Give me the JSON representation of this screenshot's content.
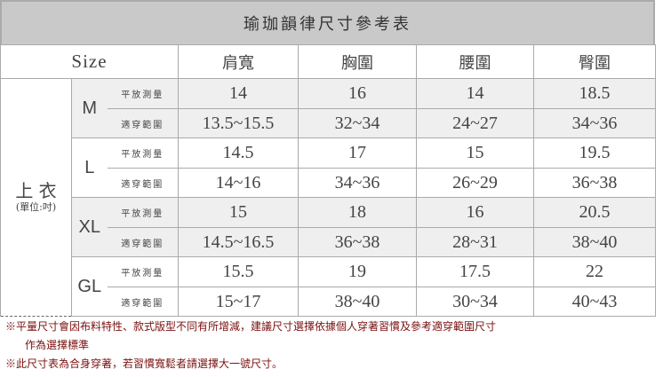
{
  "title": "瑜珈韻律尺寸參考表",
  "headers": {
    "size": "Size",
    "cols": [
      "肩寬",
      "胸圍",
      "腰圍",
      "臀圍"
    ]
  },
  "category": {
    "name": "上 衣",
    "unit": "(單位:吋)"
  },
  "row_labels": {
    "flat": "平放測量",
    "fit": "適穿範圍"
  },
  "sizes": [
    {
      "size": "M",
      "flat": [
        "14",
        "16",
        "14",
        "18.5"
      ],
      "fit": [
        "13.5~15.5",
        "32~34",
        "24~27",
        "34~36"
      ]
    },
    {
      "size": "L",
      "flat": [
        "14.5",
        "17",
        "15",
        "19.5"
      ],
      "fit": [
        "14~16",
        "34~36",
        "26~29",
        "36~38"
      ]
    },
    {
      "size": "XL",
      "flat": [
        "15",
        "18",
        "16",
        "20.5"
      ],
      "fit": [
        "14.5~16.5",
        "36~38",
        "28~31",
        "38~40"
      ]
    },
    {
      "size": "GL",
      "flat": [
        "15.5",
        "19",
        "17.5",
        "22"
      ],
      "fit": [
        "15~17",
        "38~40",
        "30~34",
        "40~43"
      ]
    }
  ],
  "notes": [
    "※平量尺寸會因布料特性、款式版型不同有所增減，建議尺寸選擇依據個人穿著習慣及參考適穿範圍尺寸",
    "作為選擇標準",
    "※此尺寸表為合身穿著，若習慣寬鬆者請選擇大一號尺寸。"
  ],
  "colors": {
    "title_bg": "#c9c9c9",
    "alt_row": "#efefef",
    "note": "#7a1010"
  }
}
